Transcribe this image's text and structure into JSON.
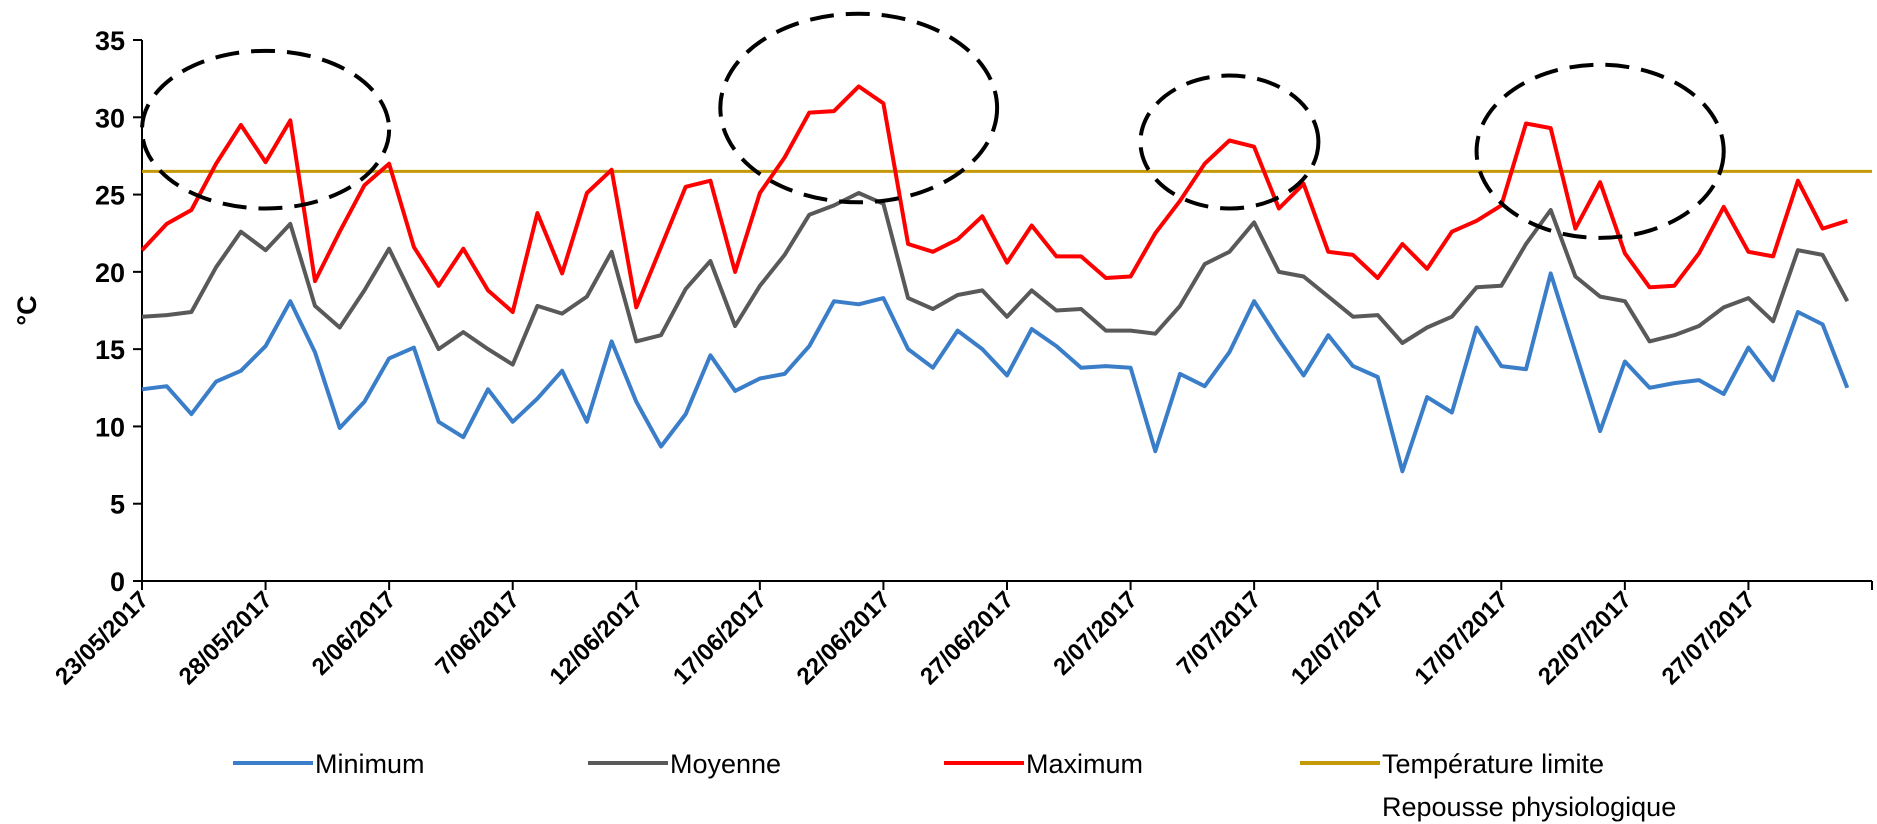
{
  "chart_data": {
    "type": "line",
    "ylabel": "°C",
    "ylim": [
      0,
      35
    ],
    "yticks": [
      0,
      5,
      10,
      15,
      20,
      25,
      30,
      35
    ],
    "grid": false,
    "legend_position": "bottom",
    "x_tick_labels": [
      "23/05/2017",
      "28/05/2017",
      "2/06/2017",
      "7/06/2017",
      "12/06/2017",
      "17/06/2017",
      "22/06/2017",
      "27/06/2017",
      "2/07/2017",
      "7/07/2017",
      "12/07/2017",
      "17/07/2017",
      "22/07/2017",
      "27/07/2017"
    ],
    "x_start": "2017-05-23",
    "x_end": "2017-08-01",
    "series": [
      {
        "name": "Minimum",
        "color": "#3a7dc8",
        "values": [
          12.4,
          12.6,
          10.8,
          12.9,
          13.6,
          15.2,
          18.1,
          14.8,
          9.9,
          11.6,
          14.4,
          15.1,
          10.3,
          9.3,
          12.4,
          10.3,
          11.8,
          13.6,
          10.3,
          15.5,
          11.6,
          8.7,
          10.8,
          14.6,
          12.3,
          13.1,
          13.4,
          15.2,
          18.1,
          17.9,
          18.3,
          15.0,
          13.8,
          16.2,
          15.0,
          13.3,
          16.3,
          15.2,
          13.8,
          13.9,
          13.8,
          8.4,
          13.4,
          12.6,
          14.8,
          18.1,
          15.6,
          13.3,
          15.9,
          13.9,
          13.2,
          7.1,
          11.9,
          10.9,
          16.4,
          13.9,
          13.7,
          19.9,
          14.8,
          9.7,
          14.2,
          12.5,
          12.8,
          13.0,
          12.1,
          15.1,
          13.0,
          17.4,
          16.6,
          12.5
        ]
      },
      {
        "name": "Moyenne",
        "color": "#595959",
        "values": [
          17.1,
          17.2,
          17.4,
          20.3,
          22.6,
          21.4,
          23.1,
          17.8,
          16.4,
          18.8,
          21.5,
          18.2,
          15.0,
          16.1,
          15.0,
          14.0,
          17.8,
          17.3,
          18.4,
          21.3,
          15.5,
          15.9,
          18.9,
          20.7,
          16.5,
          19.1,
          21.1,
          23.7,
          24.3,
          25.1,
          24.4,
          18.3,
          17.6,
          18.5,
          18.8,
          17.1,
          18.8,
          17.5,
          17.6,
          16.2,
          16.2,
          16.0,
          17.8,
          20.5,
          21.3,
          23.2,
          20.0,
          19.7,
          18.4,
          17.1,
          17.2,
          15.4,
          16.4,
          17.1,
          19.0,
          19.1,
          21.8,
          24.0,
          19.7,
          18.4,
          18.1,
          15.5,
          15.9,
          16.5,
          17.7,
          18.3,
          16.8,
          21.4,
          21.1,
          18.1
        ]
      },
      {
        "name": "Maximum",
        "color": "#ff0000",
        "values": [
          21.4,
          23.1,
          24.0,
          27.0,
          29.5,
          27.1,
          29.8,
          19.4,
          22.6,
          25.6,
          27.0,
          21.6,
          19.1,
          21.5,
          18.8,
          17.4,
          23.8,
          19.9,
          25.1,
          26.6,
          17.7,
          21.6,
          25.5,
          25.9,
          20.0,
          25.1,
          27.4,
          30.3,
          30.4,
          32.0,
          30.9,
          21.8,
          21.3,
          22.1,
          23.6,
          20.6,
          23.0,
          21.0,
          21.0,
          19.6,
          19.7,
          22.5,
          24.6,
          27.0,
          28.5,
          28.1,
          24.1,
          25.7,
          21.3,
          21.1,
          19.6,
          21.8,
          20.2,
          22.6,
          23.3,
          24.3,
          29.6,
          29.3,
          22.8,
          25.8,
          21.2,
          19.0,
          19.1,
          21.2,
          24.2,
          21.3,
          21.0,
          25.9,
          22.8,
          23.3
        ]
      },
      {
        "name": "Température limite\nRepousse physiologique",
        "color": "#c49a0a",
        "values": [
          26.5,
          26.5
        ]
      }
    ],
    "annotations": [
      {
        "shape": "dashed-ellipse",
        "cx_date": "2017-05-28",
        "cy": 29.2,
        "rx_days": 5,
        "ry": 5.1
      },
      {
        "shape": "dashed-ellipse",
        "cx_date": "2017-06-21",
        "cy": 30.6,
        "rx_days": 5.6,
        "ry": 6.1
      },
      {
        "shape": "dashed-ellipse",
        "cx_date": "2017-07-06",
        "cy": 28.4,
        "rx_days": 3.6,
        "ry": 4.3
      },
      {
        "shape": "dashed-ellipse",
        "cx_date": "2017-07-21",
        "cy": 27.8,
        "rx_days": 5.0,
        "ry": 5.6
      }
    ]
  }
}
